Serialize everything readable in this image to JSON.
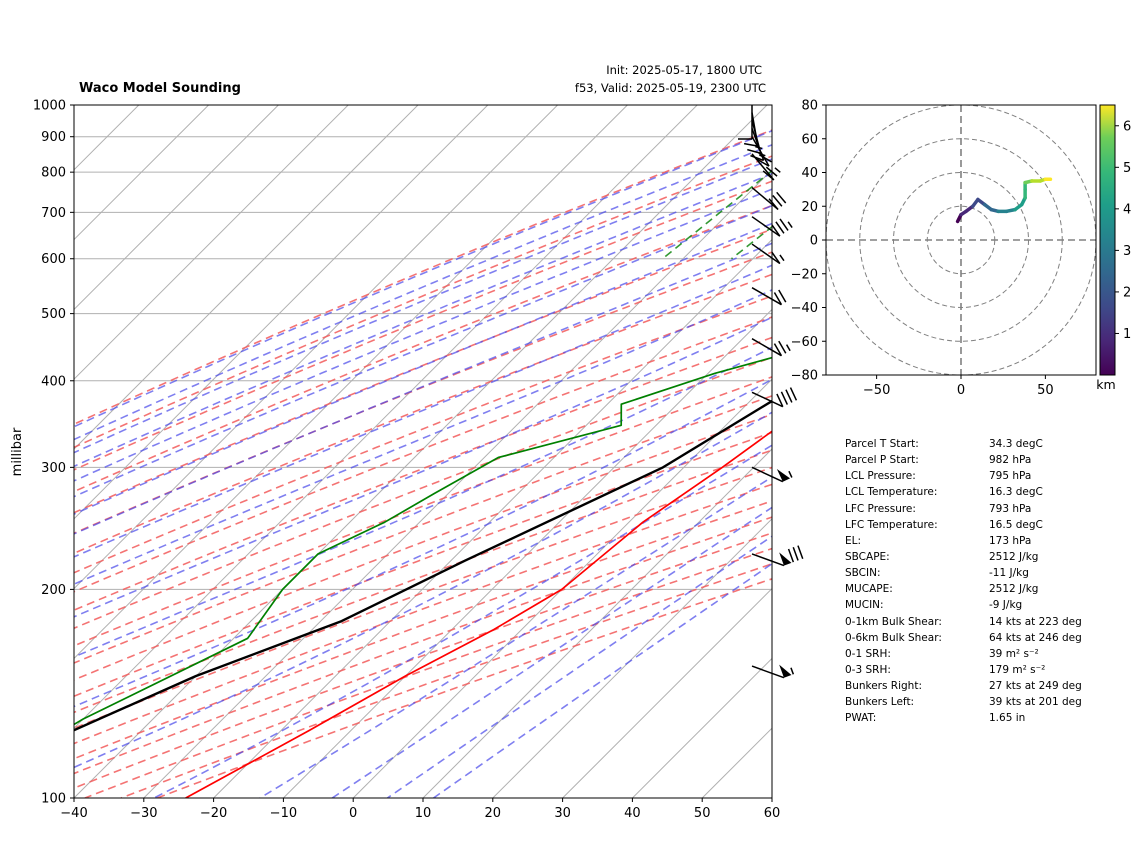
{
  "header": {
    "title": "Waco Model Sounding",
    "init": "Init: 2025-05-17, 1800 UTC",
    "valid": "f53, Valid: 2025-05-19, 2300 UTC"
  },
  "chart_data": [
    {
      "type": "line",
      "subtype": "skew-t log-p",
      "title": "Waco Model Sounding",
      "ylabel": "millibar",
      "xlabel": "",
      "xlim": [
        -40,
        60
      ],
      "ylim": [
        1000,
        100
      ],
      "y_scale": "log",
      "x_ticks": [
        "−40",
        "−30",
        "−20",
        "−10",
        "0",
        "10",
        "20",
        "30",
        "40",
        "50",
        "60"
      ],
      "y_ticks": [
        "100",
        "200",
        "300",
        "400",
        "500",
        "600",
        "700",
        "800",
        "900",
        "1000"
      ],
      "grid": true,
      "series": [
        {
          "key": "temperature",
          "color": "#ff0000",
          "points": [
            [
              35,
              1000
            ],
            [
              31,
              925
            ],
            [
              27.5,
              850
            ],
            [
              26,
              800
            ],
            [
              25.5,
              750
            ],
            [
              25,
              700
            ],
            [
              23.5,
              650
            ],
            [
              20,
              600
            ],
            [
              17.5,
              550
            ],
            [
              15.5,
              500
            ],
            [
              13,
              450
            ],
            [
              10.5,
              400
            ],
            [
              8,
              350
            ],
            [
              5.5,
              300
            ],
            [
              2,
              250
            ],
            [
              0,
              200
            ],
            [
              -4,
              175
            ],
            [
              -10,
              150
            ],
            [
              -16,
              125
            ],
            [
              -24,
              100
            ]
          ]
        },
        {
          "key": "dewpoint",
          "color": "#008000",
          "points": [
            [
              20,
              1000
            ],
            [
              21,
              950
            ],
            [
              22.5,
              900
            ],
            [
              24,
              850
            ],
            [
              25,
              800
            ],
            [
              21,
              780
            ],
            [
              13,
              740
            ],
            [
              8,
              710
            ],
            [
              -1,
              675
            ],
            [
              5,
              640
            ],
            [
              13,
              600
            ],
            [
              16.5,
              570
            ],
            [
              14,
              530
            ],
            [
              7,
              470
            ],
            [
              -1,
              440
            ],
            [
              -9,
              410
            ],
            [
              -18,
              370
            ],
            [
              -15,
              345
            ],
            [
              -28,
              310
            ],
            [
              -32,
              275
            ],
            [
              -35,
              250
            ],
            [
              -40,
              225
            ],
            [
              -40,
              200
            ],
            [
              -38,
              170
            ],
            [
              -50,
              130
            ],
            [
              -55,
              110
            ],
            [
              -62,
              100
            ]
          ]
        },
        {
          "key": "parcel",
          "color": "#000000",
          "points": [
            [
              34.3,
              982
            ],
            [
              16.3,
              795
            ],
            [
              15,
              700
            ],
            [
              13,
              600
            ],
            [
              10,
              500
            ],
            [
              5,
              400
            ],
            [
              -3,
              300
            ],
            [
              -18,
              220
            ],
            [
              -27,
              180
            ],
            [
              -40,
              150
            ],
            [
              -52,
              120
            ],
            [
              -60,
              100
            ]
          ]
        }
      ],
      "wind_barbs": [
        {
          "pressure": 155,
          "speed_kt": 55,
          "dir_deg": 250
        },
        {
          "pressure": 225,
          "speed_kt": 80,
          "dir_deg": 250
        },
        {
          "pressure": 300,
          "speed_kt": 55,
          "dir_deg": 245
        },
        {
          "pressure": 385,
          "speed_kt": 40,
          "dir_deg": 245
        },
        {
          "pressure": 460,
          "speed_kt": 25,
          "dir_deg": 240
        },
        {
          "pressure": 545,
          "speed_kt": 20,
          "dir_deg": 240
        },
        {
          "pressure": 630,
          "speed_kt": 15,
          "dir_deg": 235
        },
        {
          "pressure": 690,
          "speed_kt": 35,
          "dir_deg": 235
        },
        {
          "pressure": 760,
          "speed_kt": 30,
          "dir_deg": 230
        },
        {
          "pressure": 850,
          "speed_kt": 25,
          "dir_deg": 220
        },
        {
          "pressure": 900,
          "speed_kt": 20,
          "dir_deg": 210
        },
        {
          "pressure": 925,
          "speed_kt": 15,
          "dir_deg": 200
        },
        {
          "pressure": 950,
          "speed_kt": 15,
          "dir_deg": 195
        },
        {
          "pressure": 975,
          "speed_kt": 10,
          "dir_deg": 190
        },
        {
          "pressure": 1000,
          "speed_kt": 10,
          "dir_deg": 180
        }
      ]
    },
    {
      "type": "line",
      "subtype": "hodograph",
      "xlim": [
        -80,
        80
      ],
      "ylim": [
        -80,
        80
      ],
      "x_ticks": [
        "−50",
        "0",
        "50"
      ],
      "y_ticks": [
        "80",
        "60",
        "40",
        "20",
        "0",
        "−20",
        "−40",
        "−60",
        "−80"
      ],
      "rings": [
        20,
        40,
        60,
        80
      ],
      "colorbar": {
        "label": "km",
        "ticks": [
          "1",
          "2",
          "3",
          "4",
          "5",
          "6"
        ],
        "min": 0,
        "max": 6.5,
        "colormap": "viridis"
      },
      "points": [
        [
          -2,
          11,
          0
        ],
        [
          0,
          15,
          0.3
        ],
        [
          3,
          17,
          0.6
        ],
        [
          7,
          20,
          0.9
        ],
        [
          10,
          24,
          1.3
        ],
        [
          14,
          21,
          1.7
        ],
        [
          18,
          18,
          2.1
        ],
        [
          22,
          17,
          2.5
        ],
        [
          27,
          17,
          2.9
        ],
        [
          32,
          18,
          3.2
        ],
        [
          36,
          21,
          3.5
        ],
        [
          38,
          25,
          3.8
        ],
        [
          38,
          30,
          4.1
        ],
        [
          38,
          34,
          4.5
        ],
        [
          42,
          35,
          5
        ],
        [
          47,
          35,
          5.5
        ],
        [
          50,
          36,
          6
        ],
        [
          53,
          36,
          6.5
        ]
      ]
    }
  ],
  "parameters": [
    {
      "label": "Parcel T Start:",
      "value": "34.3 degC"
    },
    {
      "label": "Parcel P Start:",
      "value": "982 hPa"
    },
    {
      "label": "LCL Pressure:",
      "value": "795 hPa"
    },
    {
      "label": "LCL Temperature:",
      "value": "16.3 degC"
    },
    {
      "label": "LFC Pressure:",
      "value": "793 hPa"
    },
    {
      "label": "LFC Temperature:",
      "value": "16.5 degC"
    },
    {
      "label": "EL:",
      "value": "173 hPa"
    },
    {
      "label": "SBCAPE:",
      "value": "2512 J/kg"
    },
    {
      "label": "SBCIN:",
      "value": "-11 J/kg"
    },
    {
      "label": "MUCAPE:",
      "value": "2512 J/kg"
    },
    {
      "label": "MUCIN:",
      "value": "-9 J/kg"
    },
    {
      "label": "0-1km Bulk Shear:",
      "value": "14 kts at 223 deg"
    },
    {
      "label": "0-6km Bulk Shear:",
      "value": "64 kts at 246 deg"
    },
    {
      "label": "0-1 SRH:",
      "value": "39 m² s⁻²"
    },
    {
      "label": "0-3 SRH:",
      "value": "179 m² s⁻²"
    },
    {
      "label": "Bunkers Right:",
      "value": "27 kts at 249 deg"
    },
    {
      "label": "Bunkers Left:",
      "value": "39 kts at 201 deg"
    },
    {
      "label": "PWAT:",
      "value": "1.65 in"
    }
  ]
}
